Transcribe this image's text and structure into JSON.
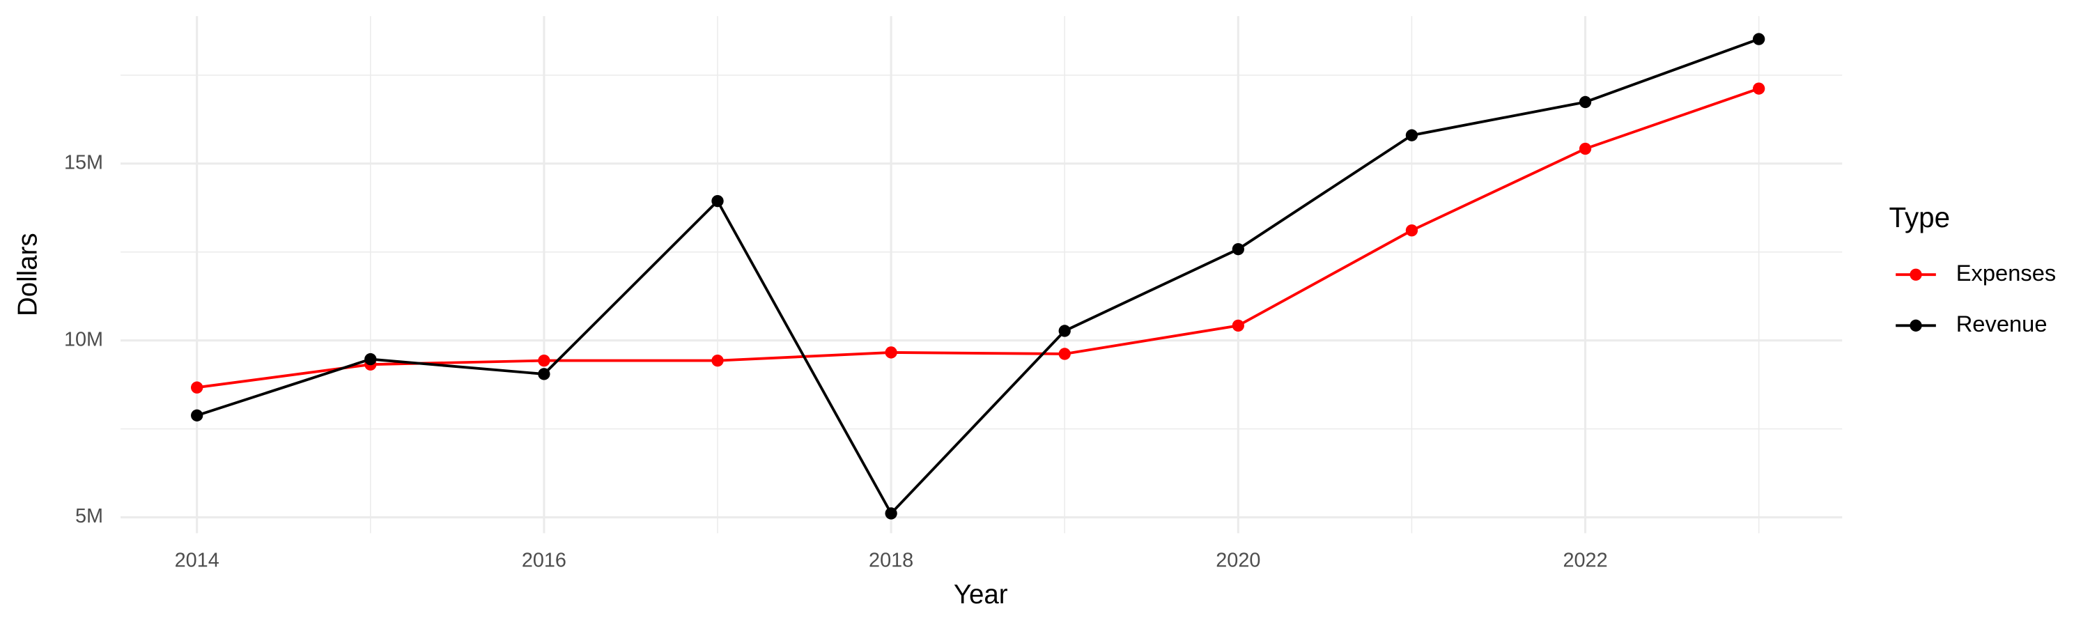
{
  "chart_data": {
    "type": "line",
    "x_label": "Year",
    "y_label": "Dollars",
    "legend_title": "Type",
    "legend_position": "right",
    "grid": true,
    "x": [
      2014,
      2015,
      2016,
      2017,
      2018,
      2019,
      2020,
      2021,
      2022,
      2023
    ],
    "series": [
      {
        "name": "Expenses",
        "color": "#ff0000",
        "values": [
          8670000,
          9320000,
          9430000,
          9430000,
          9660000,
          9620000,
          10420000,
          13110000,
          15420000,
          17120000
        ]
      },
      {
        "name": "Revenue",
        "color": "#000000",
        "values": [
          7880000,
          9470000,
          9050000,
          13940000,
          5110000,
          10270000,
          12580000,
          15800000,
          16740000,
          18520000
        ]
      }
    ],
    "xlim": [
      2013.56,
      2023.48
    ],
    "ylim": [
      4550000,
      19170000
    ],
    "xticks": [
      2014,
      2016,
      2018,
      2020,
      2022
    ],
    "x_minor_ticks": [
      2015,
      2017,
      2019,
      2021,
      2023
    ],
    "yticks": [
      {
        "value": 5000000,
        "label": "5M"
      },
      {
        "value": 10000000,
        "label": "10M"
      },
      {
        "value": 15000000,
        "label": "15M"
      }
    ],
    "y_minor_ticks": [
      7500000,
      12500000,
      17500000
    ]
  }
}
